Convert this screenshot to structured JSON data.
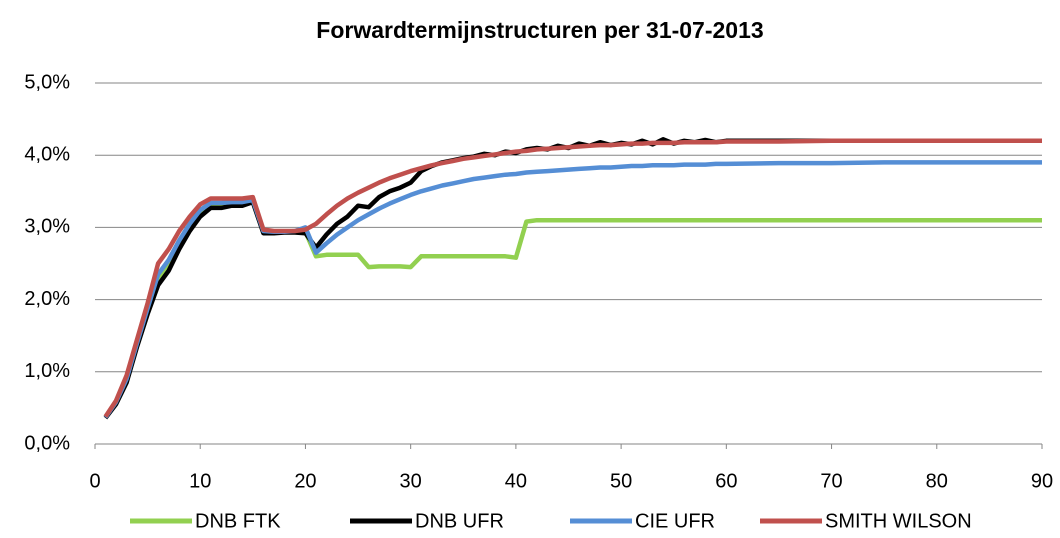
{
  "chart_data": {
    "type": "line",
    "title": "Forwardtermijnstructuren per 31-07-2013",
    "x": [
      1,
      2,
      3,
      4,
      5,
      6,
      7,
      8,
      9,
      10,
      11,
      12,
      13,
      14,
      15,
      16,
      17,
      18,
      19,
      20,
      21,
      22,
      23,
      24,
      25,
      26,
      27,
      28,
      29,
      30,
      31,
      32,
      33,
      34,
      35,
      36,
      37,
      38,
      39,
      40,
      41,
      42,
      43,
      44,
      45,
      46,
      47,
      48,
      49,
      50,
      51,
      52,
      53,
      54,
      55,
      56,
      57,
      58,
      59,
      60,
      65,
      70,
      75,
      80,
      85,
      90
    ],
    "series": [
      {
        "name": "DNB FTK",
        "color": "#92d050",
        "values": [
          0.37,
          0.57,
          0.88,
          1.38,
          1.85,
          2.3,
          2.5,
          2.78,
          3.0,
          3.2,
          3.3,
          3.3,
          3.32,
          3.32,
          3.36,
          2.93,
          2.93,
          2.94,
          2.94,
          2.94,
          2.6,
          2.62,
          2.62,
          2.62,
          2.62,
          2.45,
          2.46,
          2.46,
          2.46,
          2.45,
          2.6,
          2.6,
          2.6,
          2.6,
          2.6,
          2.6,
          2.6,
          2.6,
          2.6,
          2.58,
          3.08,
          3.1,
          3.1,
          3.1,
          3.1,
          3.1,
          3.1,
          3.1,
          3.1,
          3.1,
          3.1,
          3.1,
          3.1,
          3.1,
          3.1,
          3.1,
          3.1,
          3.1,
          3.1,
          3.1,
          3.1,
          3.1,
          3.1,
          3.1,
          3.1,
          3.1
        ]
      },
      {
        "name": "DNB UFR",
        "color": "#000000",
        "values": [
          0.36,
          0.55,
          0.85,
          1.35,
          1.8,
          2.2,
          2.4,
          2.7,
          2.95,
          3.15,
          3.27,
          3.27,
          3.3,
          3.3,
          3.35,
          2.92,
          2.92,
          2.93,
          2.93,
          2.92,
          2.72,
          2.9,
          3.05,
          3.15,
          3.3,
          3.28,
          3.42,
          3.5,
          3.55,
          3.62,
          3.78,
          3.85,
          3.9,
          3.93,
          3.96,
          3.98,
          4.02,
          4.0,
          4.05,
          4.03,
          4.08,
          4.1,
          4.08,
          4.13,
          4.1,
          4.16,
          4.13,
          4.18,
          4.14,
          4.17,
          4.15,
          4.2,
          4.15,
          4.22,
          4.16,
          4.2,
          4.18,
          4.21,
          4.18,
          4.2,
          4.2,
          4.2,
          4.2,
          4.2,
          4.2,
          4.2
        ]
      },
      {
        "name": "CIE UFR",
        "color": "#558ed5",
        "values": [
          0.37,
          0.58,
          0.9,
          1.4,
          1.88,
          2.35,
          2.55,
          2.82,
          3.05,
          3.24,
          3.34,
          3.34,
          3.35,
          3.35,
          3.38,
          2.95,
          2.94,
          2.94,
          2.95,
          3.0,
          2.65,
          2.78,
          2.9,
          3.0,
          3.1,
          3.18,
          3.26,
          3.33,
          3.39,
          3.45,
          3.5,
          3.54,
          3.58,
          3.61,
          3.64,
          3.67,
          3.69,
          3.71,
          3.73,
          3.74,
          3.76,
          3.77,
          3.78,
          3.79,
          3.8,
          3.81,
          3.82,
          3.83,
          3.83,
          3.84,
          3.85,
          3.85,
          3.86,
          3.86,
          3.86,
          3.87,
          3.87,
          3.87,
          3.88,
          3.88,
          3.89,
          3.89,
          3.9,
          3.9,
          3.9,
          3.9
        ]
      },
      {
        "name": "SMITH WILSON",
        "color": "#c0504d",
        "values": [
          0.38,
          0.6,
          0.95,
          1.45,
          1.95,
          2.5,
          2.7,
          2.95,
          3.15,
          3.32,
          3.4,
          3.4,
          3.4,
          3.4,
          3.42,
          2.97,
          2.95,
          2.95,
          2.95,
          2.97,
          3.05,
          3.18,
          3.3,
          3.4,
          3.48,
          3.55,
          3.62,
          3.68,
          3.73,
          3.78,
          3.82,
          3.86,
          3.89,
          3.92,
          3.95,
          3.97,
          3.99,
          4.01,
          4.03,
          4.05,
          4.06,
          4.08,
          4.09,
          4.1,
          4.11,
          4.12,
          4.13,
          4.14,
          4.14,
          4.15,
          4.16,
          4.16,
          4.17,
          4.17,
          4.17,
          4.18,
          4.18,
          4.18,
          4.18,
          4.19,
          4.19,
          4.2,
          4.2,
          4.2,
          4.2,
          4.2
        ]
      }
    ],
    "xlim": [
      0,
      90
    ],
    "xticks": [
      0,
      10,
      20,
      30,
      40,
      50,
      60,
      70,
      80,
      90
    ],
    "ylim": [
      0,
      5
    ],
    "yticks": [
      {
        "value": 0,
        "label": "0,0%"
      },
      {
        "value": 1,
        "label": "1,0%"
      },
      {
        "value": 2,
        "label": "2,0%"
      },
      {
        "value": 3,
        "label": "3,0%"
      },
      {
        "value": 4,
        "label": "4,0%"
      },
      {
        "value": 5,
        "label": "5,0%"
      }
    ],
    "grid": true,
    "legend": "bottom"
  }
}
